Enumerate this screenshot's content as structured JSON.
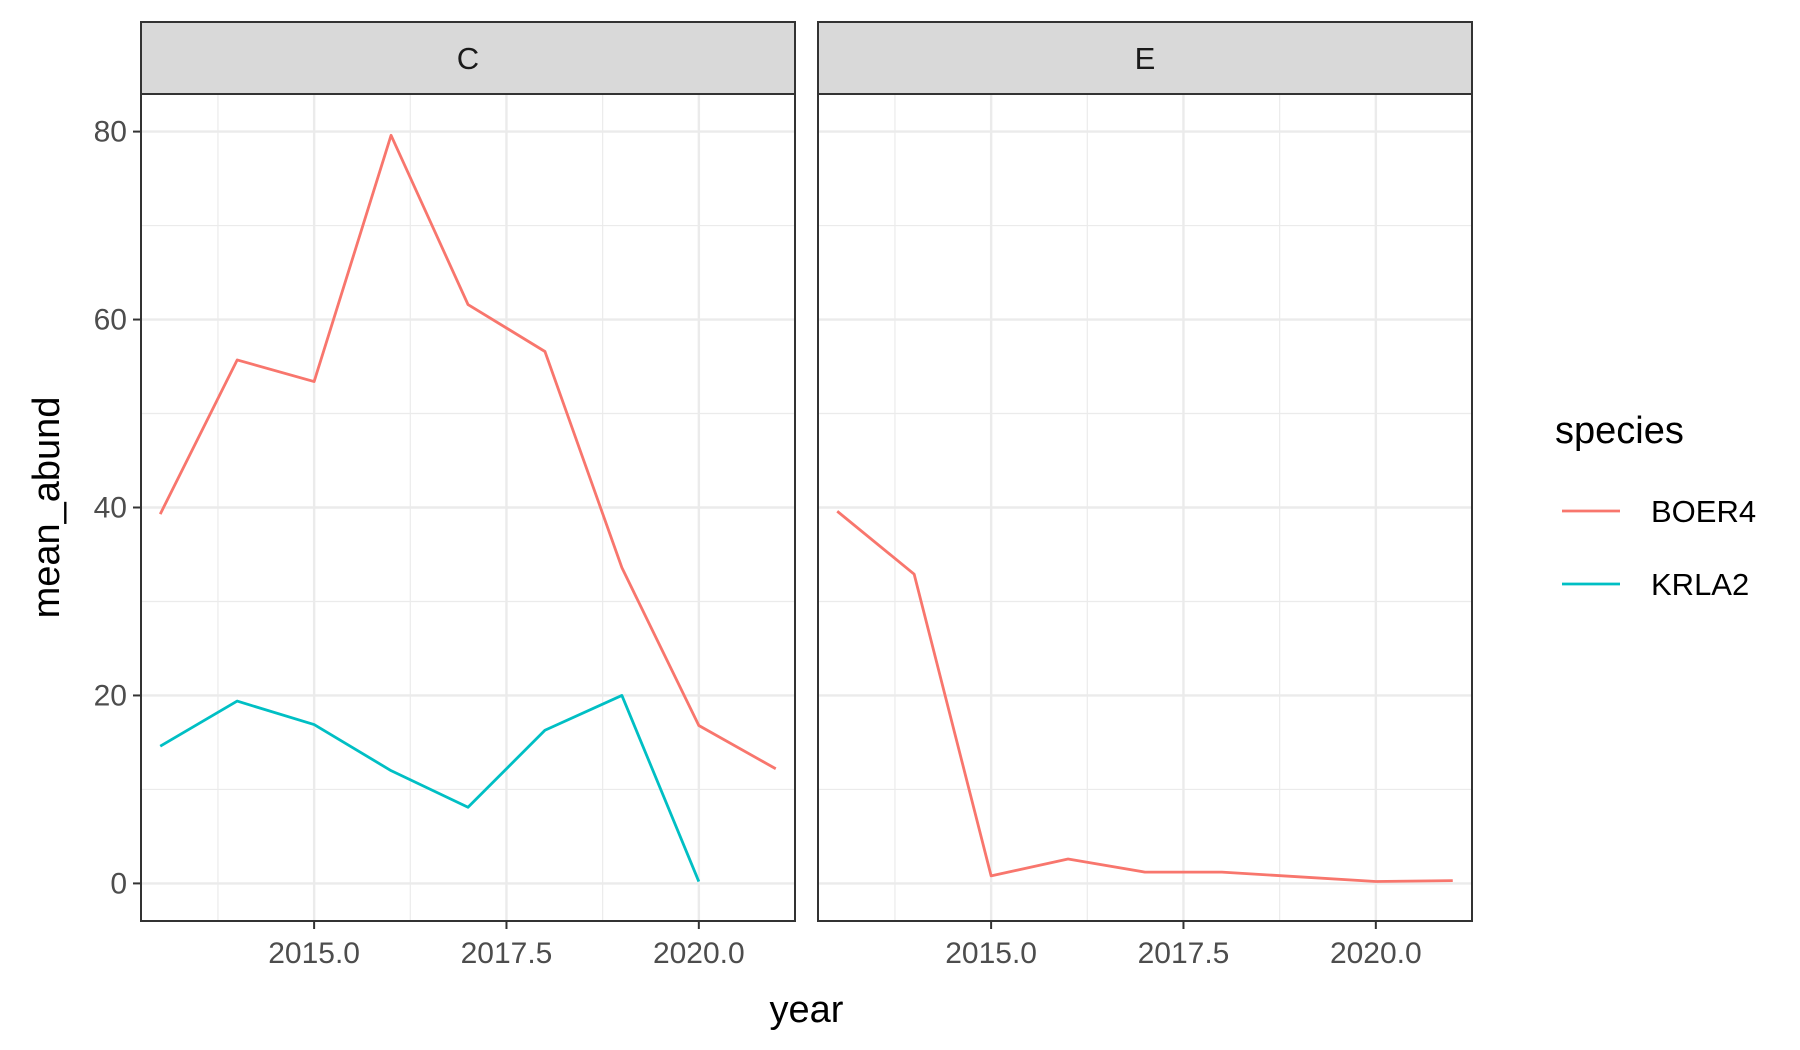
{
  "chart_data": {
    "type": "line",
    "xlabel": "year",
    "ylabel": "mean_abund",
    "xlim": [
      2012.75,
      2021.25
    ],
    "ylim": [
      -4,
      84
    ],
    "x_ticks": [
      2015.0,
      2017.5,
      2020.0
    ],
    "x_tick_labels": [
      "2015.0",
      "2017.5",
      "2020.0"
    ],
    "x_minor_ticks": [
      2013.75,
      2016.25,
      2018.75,
      2021.25
    ],
    "y_ticks": [
      0,
      20,
      40,
      60,
      80
    ],
    "y_tick_labels": [
      "0",
      "20",
      "40",
      "60",
      "80"
    ],
    "y_minor_ticks": [
      10,
      30,
      50,
      70
    ],
    "grid": true,
    "legend": {
      "title": "species",
      "placement": "right",
      "entries": [
        {
          "name": "BOER4",
          "color": "#F8766D"
        },
        {
          "name": "KRLA2",
          "color": "#00BFC4"
        }
      ]
    },
    "facets": [
      {
        "label": "C",
        "series": [
          {
            "name": "BOER4",
            "color": "#F8766D",
            "x": [
              2013,
              2014,
              2015,
              2016,
              2017,
              2018,
              2019,
              2020,
              2021
            ],
            "values": [
              39.3,
              55.7,
              53.4,
              79.6,
              61.6,
              56.6,
              33.6,
              16.8,
              12.2
            ]
          },
          {
            "name": "KRLA2",
            "color": "#00BFC4",
            "x": [
              2013,
              2014,
              2015,
              2016,
              2017,
              2018,
              2019,
              2020
            ],
            "values": [
              14.6,
              19.4,
              16.9,
              12.0,
              8.1,
              16.3,
              20.0,
              0.2
            ]
          }
        ]
      },
      {
        "label": "E",
        "series": [
          {
            "name": "BOER4",
            "color": "#F8766D",
            "x": [
              2013,
              2014,
              2015,
              2016,
              2017,
              2018,
              2019,
              2020,
              2021
            ],
            "values": [
              39.6,
              32.9,
              0.8,
              2.6,
              1.2,
              1.2,
              0.7,
              0.2,
              0.3
            ]
          }
        ]
      }
    ]
  }
}
